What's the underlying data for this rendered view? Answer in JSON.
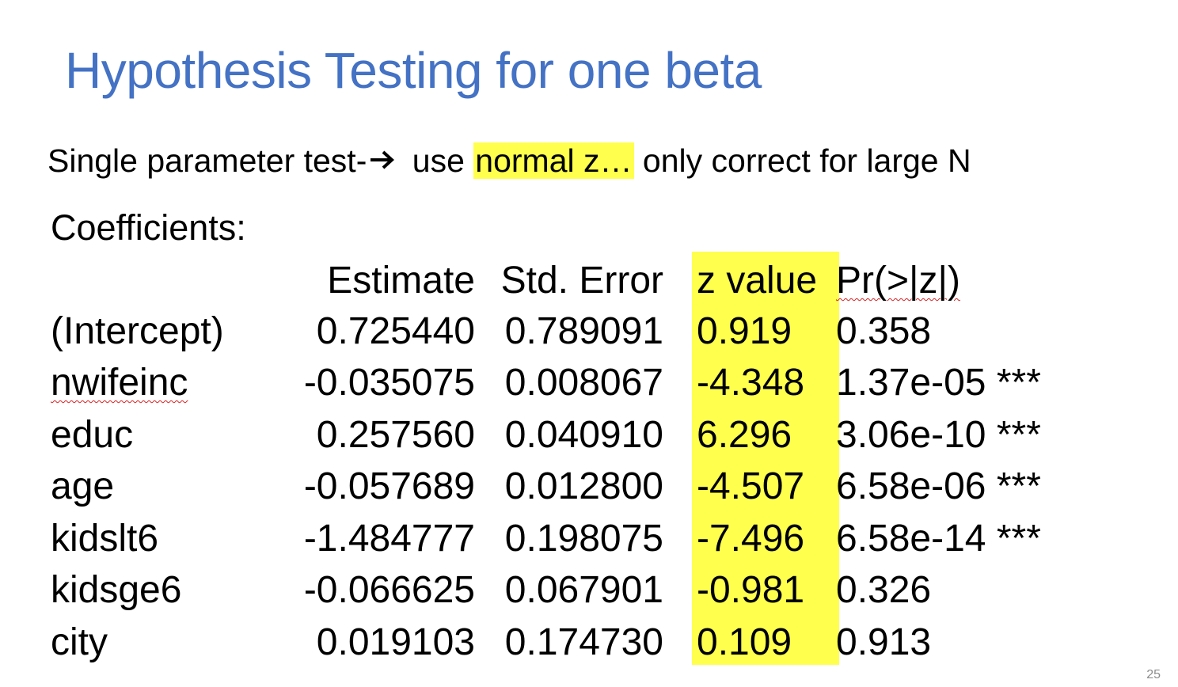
{
  "title": "Hypothesis Testing for one beta",
  "subtitle": {
    "part1": "Single parameter test-",
    "part2": "use",
    "highlight": "normal  z…",
    "part3": "only correct for large N"
  },
  "coefficients_heading": "Coefficients:",
  "table": {
    "headers": [
      "Estimate",
      "Std. Error",
      "z value",
      "Pr(>|z|)"
    ],
    "rows": [
      {
        "name": "(Intercept)",
        "estimate": "0.725440",
        "std_error": "0.789091",
        "z_value": "0.919",
        "p_value": "0.358"
      },
      {
        "name": "nwifeinc",
        "estimate": "-0.035075",
        "std_error": "0.008067",
        "z_value": "-4.348",
        "p_value": "1.37e-05 ***"
      },
      {
        "name": "educ",
        "estimate": "0.257560",
        "std_error": "0.040910",
        "z_value": "6.296",
        "p_value": "3.06e-10 ***"
      },
      {
        "name": "age",
        "estimate": "-0.057689",
        "std_error": "0.012800",
        "z_value": "-4.507",
        "p_value": "6.58e-06 ***"
      },
      {
        "name": "kidslt6",
        "estimate": "-1.484777",
        "std_error": "0.198075",
        "z_value": "-7.496",
        "p_value": "6.58e-14 ***"
      },
      {
        "name": "kidsge6",
        "estimate": "-0.066625",
        "std_error": "0.067901",
        "z_value": "-0.981",
        "p_value": "0.326"
      },
      {
        "name": "city",
        "estimate": "0.019103",
        "std_error": "0.174730",
        "z_value": "0.109",
        "p_value": "0.913"
      }
    ]
  },
  "page_number": "25",
  "colors": {
    "title": "#4472c4",
    "highlight": "#ffff4d"
  }
}
